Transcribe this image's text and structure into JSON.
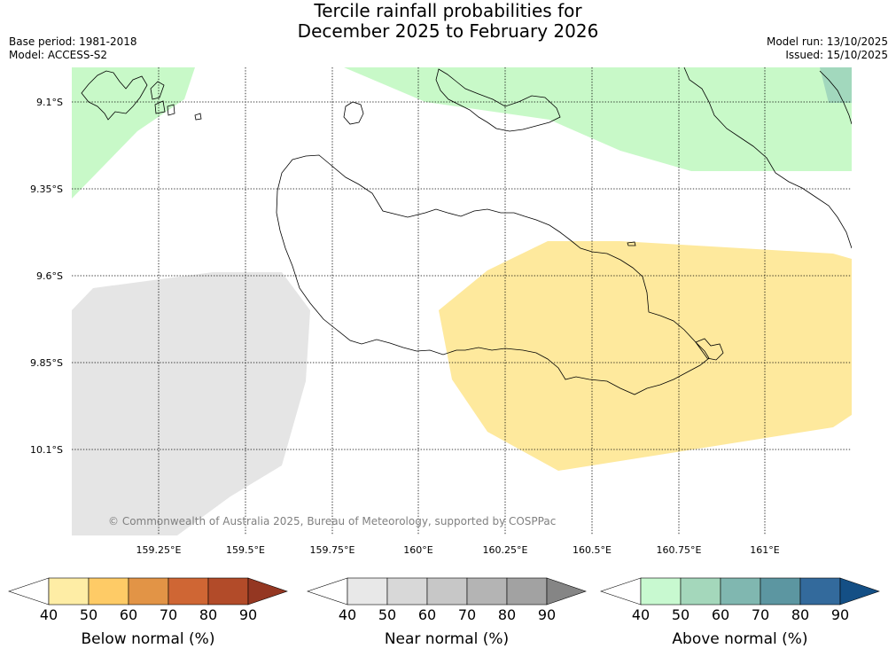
{
  "title": {
    "line1": "Tercile rainfall probabilities for",
    "line2": "December 2025 to February 2026"
  },
  "meta": {
    "base_period": "Base period: 1981-2018",
    "model": "Model: ACCESS-S2",
    "model_run": "Model run: 13/10/2025",
    "issued": "Issued: 15/10/2025"
  },
  "map": {
    "lat_labels": [
      "9.1°S",
      "9.35°S",
      "9.6°S",
      "9.85°S",
      "10.1°S"
    ],
    "lon_labels": [
      "159.25°E",
      "159.5°E",
      "159.75°E",
      "160°E",
      "160.25°E",
      "160.5°E",
      "160.75°E",
      "161°E"
    ],
    "copyright": "© Commonwealth of Australia 2025, Bureau of Meteorology, supported by COSPPac",
    "colors": {
      "below_normal_50_60": "#fee99d",
      "near_normal_50_60": "#e5e5e5",
      "above_normal_40_50": "#c8f9c8",
      "above_normal_50_60": "#a2d8bd",
      "coastline": "#000000"
    }
  },
  "colorbars": [
    {
      "label": "Below normal (%)",
      "ticks": [
        "40",
        "50",
        "60",
        "70",
        "80",
        "90"
      ],
      "colors": [
        "#ffffff",
        "#feeda5",
        "#fecb66",
        "#e29446",
        "#cf6634",
        "#b24b29",
        "#943722"
      ]
    },
    {
      "label": "Near normal (%)",
      "ticks": [
        "40",
        "50",
        "60",
        "70",
        "80",
        "90"
      ],
      "colors": [
        "#ffffff",
        "#e8e8e8",
        "#d8d8d8",
        "#c7c7c7",
        "#b4b4b4",
        "#a2a2a2",
        "#858585"
      ]
    },
    {
      "label": "Above normal (%)",
      "ticks": [
        "40",
        "50",
        "60",
        "70",
        "80",
        "90"
      ],
      "colors": [
        "#ffffff",
        "#c8f9d0",
        "#a4d7bb",
        "#80b7b0",
        "#5c96a1",
        "#336a9c",
        "#144f85"
      ]
    }
  ]
}
